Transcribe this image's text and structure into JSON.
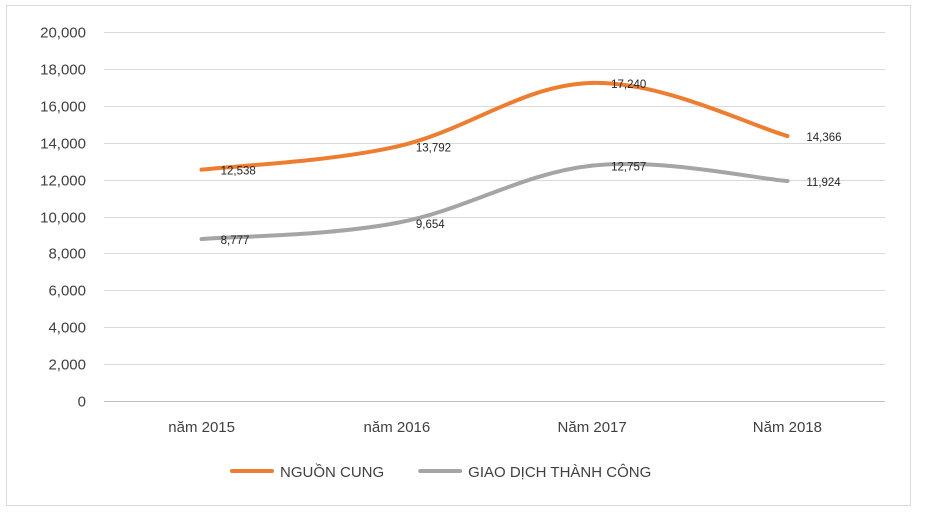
{
  "chart_data": {
    "type": "line",
    "title": "",
    "xlabel": "",
    "ylabel": "",
    "categories": [
      "năm 2015",
      "năm 2016",
      "Năm 2017",
      "Năm 2018"
    ],
    "ylim": [
      0,
      20000
    ],
    "yticks": [
      0,
      2000,
      4000,
      6000,
      8000,
      10000,
      12000,
      14000,
      16000,
      18000,
      20000
    ],
    "ytick_labels": [
      "0",
      "2,000",
      "4,000",
      "6,000",
      "8,000",
      "10,000",
      "12,000",
      "14,000",
      "16,000",
      "18,000",
      "20,000"
    ],
    "grid": true,
    "legend_position": "bottom",
    "series": [
      {
        "name": "NGUỒN CUNG",
        "color": "#ed7d31",
        "values": [
          12538,
          13792,
          17240,
          14366
        ],
        "labels": [
          "12,538",
          "13,792",
          "17,240",
          "14,366"
        ]
      },
      {
        "name": "GIAO DỊCH THÀNH CÔNG",
        "color": "#a5a5a5",
        "values": [
          8777,
          9654,
          12757,
          11924
        ],
        "labels": [
          "8,777",
          "9,654",
          "12,757",
          "11,924"
        ]
      }
    ]
  }
}
